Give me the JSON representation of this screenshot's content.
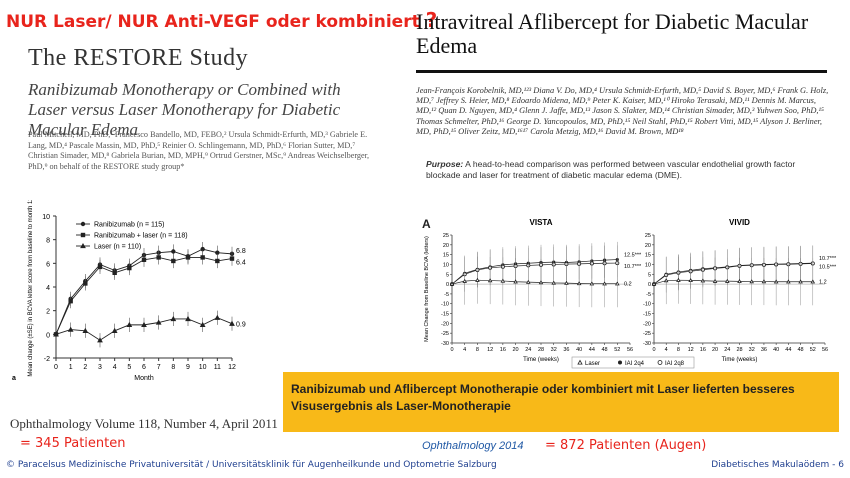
{
  "slide_title": "NUR Laser/ NUR Anti-VEGF oder kombiniert",
  "slide_title_q": "?",
  "left": {
    "study_title": "The RESTORE Study",
    "subtitle": "Ranibizumab Monotherapy or Combined with Laser versus Laser Monotherapy for Diabetic Macular Edema",
    "authors": "Paul Mitchell, MD, PhD,¹ Francesco Bandello, MD, FEBO,² Ursula Schmidt-Erfurth, MD,³ Gabriele E. Lang, MD,⁴ Pascale Massin, MD, PhD,⁵ Reinier O. Schlingemann, MD, PhD,⁶ Florian Sutter, MD,⁷ Christian Simader, MD,⁸ Gabriela Burian, MD, MPH,⁹ Ortrud Gerstner, MSc,⁹ Andreas Weichselberger, PhD,⁹ on behalf of the RESTORE study group*",
    "citation": "Ophthalmology  Volume 118, Number 4, April 2011",
    "patients": "= 345 Patienten"
  },
  "right": {
    "paper_title": "Intravitreal Aflibercept for Diabetic Macular Edema",
    "authors": "Jean-François Korobelnik, MD,¹²³ Diana V. Do, MD,⁴ Ursula Schmidt-Erfurth, MD,⁵ David S. Boyer, MD,⁶ Frank G. Holz, MD,⁷ Jeffrey S. Heier, MD,⁸ Edoardo Midena, MD,⁹ Peter K. Kaiser, MD,¹⁰ Hiroko Terasaki, MD,¹¹ Dennis M. Marcus, MD,¹² Quan D. Nguyen, MD,⁴ Glenn J. Jaffe, MD,¹³ Jason S. Slakter, MD,¹⁴ Christian Simader, MD,³ Yuhwen Soo, PhD,¹⁵ Thomas Schmelter, PhD,¹⁶ George D. Yancopoulos, MD, PhD,¹⁵ Neil Stahl, PhD,¹⁵ Robert Vitti, MD,¹⁵ Alyson J. Berliner, MD, PhD,¹⁵ Oliver Zeitz, MD,¹⁶¹⁷ Carola Metzig, MD,¹⁶ David M. Brown, MD¹⁸",
    "purpose_label": "Purpose:",
    "purpose_text": "A head-to-head comparison was performed between vascular endothelial growth factor blockade and laser for treatment of diabetic macular edema (DME).",
    "panel_label": "A",
    "journal": "Ophthalmology 2014",
    "patients": "= 872 Patienten (Augen)"
  },
  "conclusion": "Ranibizumab und Aflibercept Monotherapie oder kombiniert mit Laser lieferten besseres Visusergebnis als Laser-Monotherapie",
  "footer": {
    "left": "© Paracelsus Medizinische Privatuniversität / Universitätsklinik für Augenheilkunde und Optometrie Salzburg",
    "right": "Diabetisches Makulaödem - 6"
  },
  "chart_data": [
    {
      "type": "line",
      "panel_label": "a",
      "xlabel": "Month",
      "ylabel": "Mean change (±SE) in BCVA letter score from baseline to month 12",
      "xlim": [
        0,
        12
      ],
      "ylim": [
        -2,
        10
      ],
      "x": [
        0,
        1,
        2,
        3,
        4,
        5,
        6,
        7,
        8,
        9,
        10,
        11,
        12
      ],
      "series": [
        {
          "name": "Ranibizumab (n = 115)",
          "marker": "circle",
          "values": [
            0,
            3.0,
            4.5,
            5.9,
            5.4,
            5.8,
            6.7,
            6.9,
            7.0,
            6.6,
            7.2,
            6.9,
            6.8
          ],
          "end_label": "6.8"
        },
        {
          "name": "Ranibizumab + laser (n = 118)",
          "marker": "square",
          "values": [
            0,
            2.8,
            4.3,
            5.7,
            5.2,
            5.6,
            6.3,
            6.5,
            6.2,
            6.5,
            6.5,
            6.2,
            6.4
          ],
          "end_label": "6.4"
        },
        {
          "name": "Laser (n = 110)",
          "marker": "triangle",
          "values": [
            0,
            0.4,
            0.3,
            -0.5,
            0.3,
            0.8,
            0.8,
            1.0,
            1.3,
            1.3,
            0.8,
            1.4,
            0.9
          ],
          "end_label": "0.9"
        }
      ]
    },
    {
      "type": "line",
      "title": "VISTA",
      "xlabel": "Time (weeks)",
      "ylabel": "Mean Change from Baseline BCVA (letters)",
      "xlim": [
        0,
        56
      ],
      "ylim": [
        -30,
        25
      ],
      "xticks": [
        0,
        4,
        8,
        12,
        16,
        20,
        24,
        28,
        32,
        36,
        40,
        44,
        48,
        52,
        56
      ],
      "x": [
        0,
        4,
        8,
        12,
        16,
        20,
        24,
        28,
        32,
        36,
        40,
        44,
        48,
        52
      ],
      "series": [
        {
          "name": "IAI 2q4",
          "marker": "circle-filled",
          "values": [
            0,
            5.5,
            7.5,
            8.8,
            9.8,
            10.3,
            10.6,
            11.0,
            11.2,
            11.0,
            11.3,
            11.8,
            12.2,
            12.5
          ],
          "end_label": "12.5***"
        },
        {
          "name": "IAI 2q8",
          "marker": "circle-open",
          "values": [
            0,
            5.0,
            7.2,
            8.3,
            8.8,
            9.2,
            9.5,
            9.8,
            10.0,
            10.2,
            10.3,
            10.5,
            10.6,
            10.7
          ],
          "end_label": "10.7***"
        },
        {
          "name": "Laser",
          "marker": "triangle-open",
          "values": [
            0,
            1.5,
            2.0,
            1.8,
            1.6,
            1.2,
            1.0,
            0.8,
            0.6,
            0.5,
            0.3,
            0.2,
            0.2,
            0.2
          ],
          "end_label": "0.2"
        }
      ]
    },
    {
      "type": "line",
      "title": "VIVID",
      "xlabel": "Time (weeks)",
      "ylim": [
        -30,
        25
      ],
      "xlim": [
        0,
        56
      ],
      "xticks": [
        0,
        4,
        8,
        12,
        16,
        20,
        24,
        28,
        32,
        36,
        40,
        44,
        48,
        52,
        56
      ],
      "x": [
        0,
        4,
        8,
        12,
        16,
        20,
        24,
        28,
        32,
        36,
        40,
        44,
        48,
        52
      ],
      "series": [
        {
          "name": "IAI 2q4",
          "marker": "circle-filled",
          "values": [
            0,
            5.0,
            6.2,
            7.0,
            7.8,
            8.3,
            8.8,
            9.5,
            9.8,
            10.0,
            10.2,
            10.3,
            10.5,
            10.7
          ],
          "end_label": "10.7***"
        },
        {
          "name": "IAI 2q8",
          "marker": "circle-open",
          "values": [
            0,
            4.6,
            5.8,
            6.5,
            7.3,
            8.0,
            8.5,
            9.3,
            9.6,
            9.8,
            10.0,
            10.1,
            10.3,
            10.5
          ],
          "end_label": "10.5***"
        },
        {
          "name": "Laser",
          "marker": "triangle-open",
          "values": [
            0,
            1.8,
            2.0,
            1.9,
            1.7,
            1.5,
            1.5,
            1.4,
            1.3,
            1.3,
            1.2,
            1.2,
            1.2,
            1.2
          ],
          "end_label": "1.2"
        }
      ]
    }
  ]
}
